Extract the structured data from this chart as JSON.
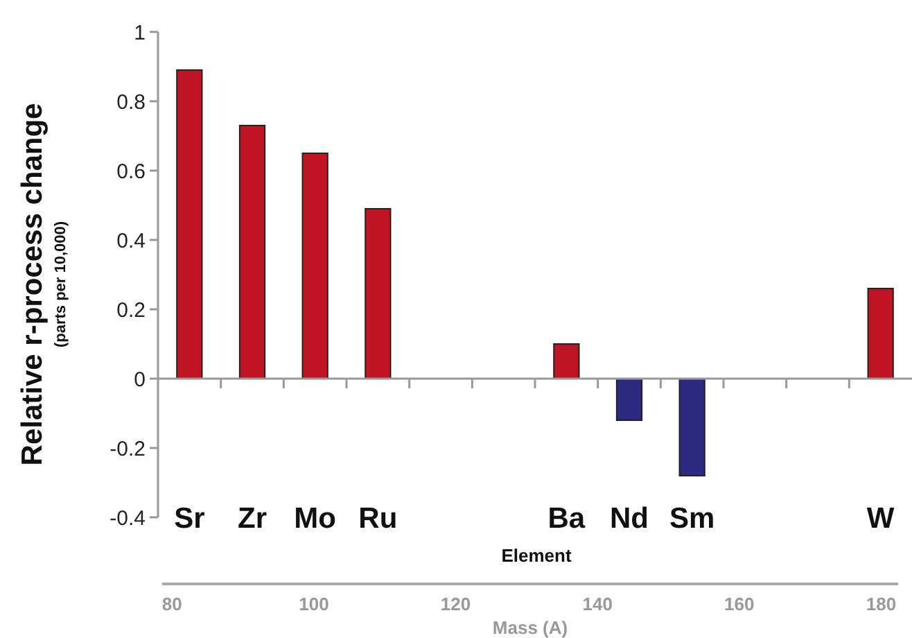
{
  "chart_data": {
    "type": "bar",
    "categories": [
      "Sr",
      "Zr",
      "Mo",
      "Ru",
      null,
      null,
      "Ba",
      "Nd",
      "Sm",
      null,
      null,
      "W"
    ],
    "values": [
      0.89,
      0.73,
      0.65,
      0.49,
      null,
      null,
      0.1,
      -0.12,
      -0.28,
      null,
      null,
      0.26
    ],
    "colors": [
      "#be1423",
      "#be1423",
      "#be1423",
      "#be1423",
      null,
      null,
      "#be1423",
      "#2b2a80",
      "#2b2a80",
      null,
      null,
      "#be1423"
    ],
    "ylabel": "Relative r-process change\n(parts per 10,000)",
    "xlabel": "Element",
    "x2label": "Mass (A)",
    "ylim": [
      -0.4,
      1
    ],
    "yticks": [
      -0.4,
      -0.2,
      0,
      0.2,
      0.4,
      0.6,
      0.8,
      1
    ],
    "x2lim": [
      78.6,
      182.4
    ],
    "x2ticks": [
      80,
      100,
      120,
      140,
      160,
      180
    ]
  }
}
